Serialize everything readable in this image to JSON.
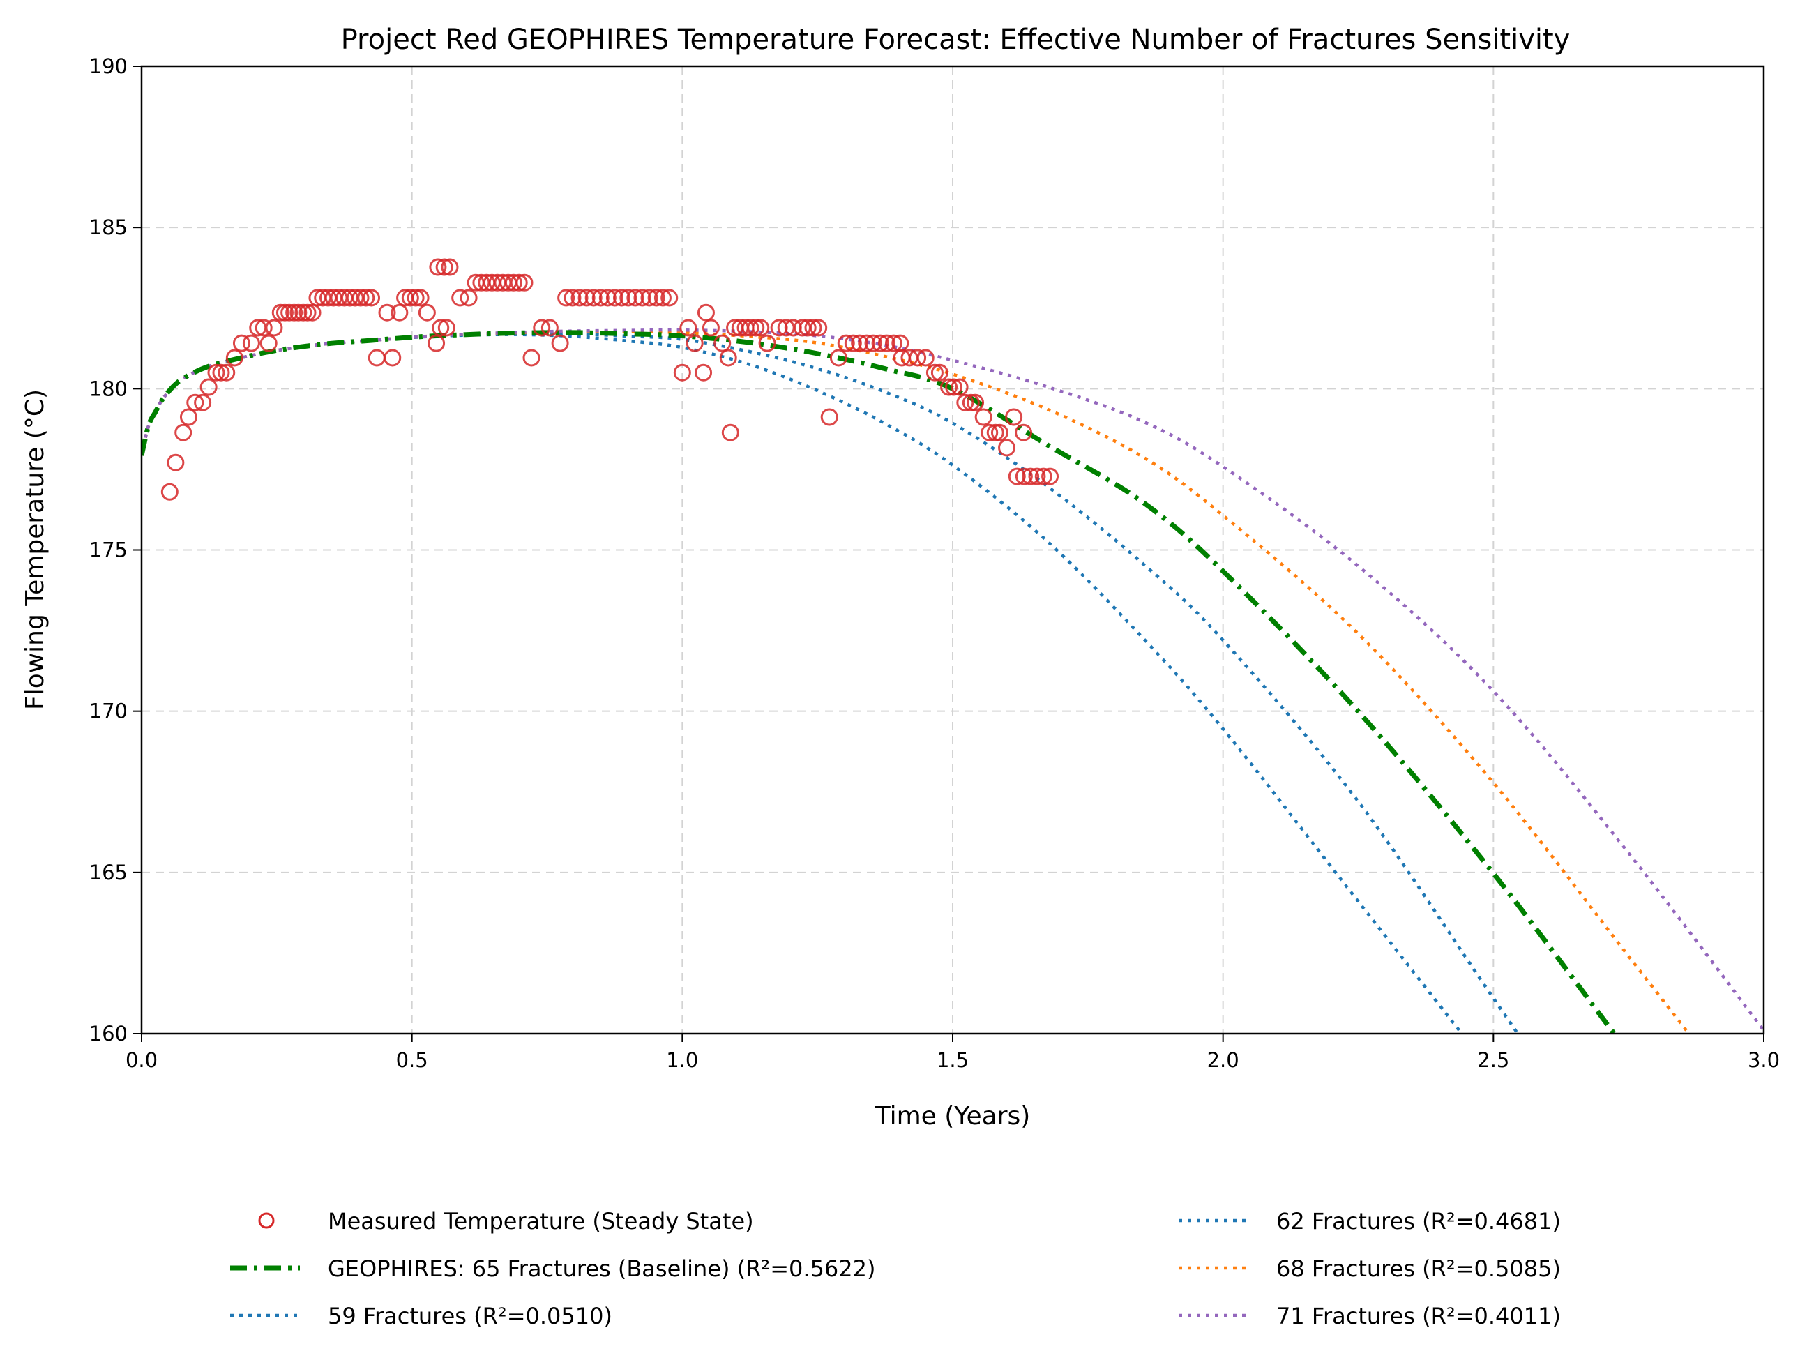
{
  "chart_data": {
    "type": "line",
    "title": "Project Red GEOPHIRES Temperature Forecast: Effective Number of Fractures Sensitivity",
    "xlabel": "Time (Years)",
    "ylabel": "Flowing Temperature (°C)",
    "xlim": [
      0.0,
      3.0
    ],
    "ylim": [
      160,
      190
    ],
    "xticks": [
      0.0,
      0.5,
      1.0,
      1.5,
      2.0,
      2.5,
      3.0
    ],
    "xtick_labels": [
      "0.0",
      "0.5",
      "1.0",
      "1.5",
      "2.0",
      "2.5",
      "3.0"
    ],
    "yticks": [
      160,
      165,
      170,
      175,
      180,
      185,
      190
    ],
    "ytick_labels": [
      "160",
      "165",
      "170",
      "175",
      "180",
      "185",
      "190"
    ],
    "grid": true,
    "legend_placement": "bottom-center, below plot, 2 columns",
    "scatter": {
      "name": "Measured Temperature (Steady State)",
      "color": "#d62728",
      "marker": "open-circle",
      "points": [
        [
          0.052,
          176.8
        ],
        [
          0.063,
          177.71
        ],
        [
          0.077,
          178.64
        ],
        [
          0.087,
          179.12
        ],
        [
          0.099,
          179.57
        ],
        [
          0.113,
          179.57
        ],
        [
          0.124,
          180.05
        ],
        [
          0.138,
          180.5
        ],
        [
          0.147,
          180.5
        ],
        [
          0.157,
          180.5
        ],
        [
          0.172,
          180.96
        ],
        [
          0.185,
          181.41
        ],
        [
          0.203,
          181.41
        ],
        [
          0.235,
          181.41
        ],
        [
          0.215,
          181.89
        ],
        [
          0.226,
          181.89
        ],
        [
          0.245,
          181.89
        ],
        [
          0.257,
          182.36
        ],
        [
          0.265,
          182.36
        ],
        [
          0.273,
          182.36
        ],
        [
          0.282,
          182.36
        ],
        [
          0.29,
          182.36
        ],
        [
          0.299,
          182.36
        ],
        [
          0.307,
          182.36
        ],
        [
          0.316,
          182.36
        ],
        [
          0.325,
          182.82
        ],
        [
          0.335,
          182.82
        ],
        [
          0.345,
          182.82
        ],
        [
          0.355,
          182.82
        ],
        [
          0.365,
          182.82
        ],
        [
          0.375,
          182.82
        ],
        [
          0.385,
          182.82
        ],
        [
          0.395,
          182.82
        ],
        [
          0.405,
          182.82
        ],
        [
          0.415,
          182.82
        ],
        [
          0.425,
          182.82
        ],
        [
          0.435,
          180.96
        ],
        [
          0.464,
          180.96
        ],
        [
          0.454,
          182.36
        ],
        [
          0.477,
          182.36
        ],
        [
          0.487,
          182.82
        ],
        [
          0.497,
          182.82
        ],
        [
          0.507,
          182.82
        ],
        [
          0.516,
          182.82
        ],
        [
          0.528,
          182.36
        ],
        [
          0.545,
          181.41
        ],
        [
          0.553,
          181.89
        ],
        [
          0.564,
          181.89
        ],
        [
          0.548,
          183.77
        ],
        [
          0.56,
          183.77
        ],
        [
          0.57,
          183.77
        ],
        [
          0.589,
          182.82
        ],
        [
          0.605,
          182.82
        ],
        [
          0.618,
          183.29
        ],
        [
          0.628,
          183.29
        ],
        [
          0.638,
          183.29
        ],
        [
          0.648,
          183.29
        ],
        [
          0.658,
          183.29
        ],
        [
          0.668,
          183.29
        ],
        [
          0.678,
          183.29
        ],
        [
          0.688,
          183.29
        ],
        [
          0.698,
          183.29
        ],
        [
          0.708,
          183.29
        ],
        [
          0.721,
          180.96
        ],
        [
          0.74,
          181.89
        ],
        [
          0.755,
          181.89
        ],
        [
          0.774,
          181.41
        ],
        [
          0.785,
          182.82
        ],
        [
          0.797,
          182.82
        ],
        [
          0.81,
          182.82
        ],
        [
          0.823,
          182.82
        ],
        [
          0.836,
          182.82
        ],
        [
          0.849,
          182.82
        ],
        [
          0.862,
          182.82
        ],
        [
          0.875,
          182.82
        ],
        [
          0.888,
          182.82
        ],
        [
          0.9,
          182.82
        ],
        [
          0.913,
          182.82
        ],
        [
          0.926,
          182.82
        ],
        [
          0.939,
          182.82
        ],
        [
          0.952,
          182.82
        ],
        [
          0.964,
          182.82
        ],
        [
          0.976,
          182.82
        ],
        [
          1.0,
          180.5
        ],
        [
          1.011,
          181.89
        ],
        [
          1.023,
          181.41
        ],
        [
          1.039,
          180.5
        ],
        [
          1.044,
          182.36
        ],
        [
          1.053,
          181.89
        ],
        [
          1.074,
          181.41
        ],
        [
          1.085,
          180.96
        ],
        [
          1.089,
          178.64
        ],
        [
          1.097,
          181.89
        ],
        [
          1.107,
          181.89
        ],
        [
          1.117,
          181.89
        ],
        [
          1.126,
          181.89
        ],
        [
          1.136,
          181.89
        ],
        [
          1.145,
          181.89
        ],
        [
          1.157,
          181.41
        ],
        [
          1.179,
          181.89
        ],
        [
          1.192,
          181.89
        ],
        [
          1.205,
          181.89
        ],
        [
          1.222,
          181.89
        ],
        [
          1.232,
          181.89
        ],
        [
          1.242,
          181.89
        ],
        [
          1.252,
          181.89
        ],
        [
          1.272,
          179.12
        ],
        [
          1.289,
          180.96
        ],
        [
          1.303,
          181.41
        ],
        [
          1.316,
          181.41
        ],
        [
          1.328,
          181.41
        ],
        [
          1.341,
          181.41
        ],
        [
          1.353,
          181.41
        ],
        [
          1.366,
          181.41
        ],
        [
          1.378,
          181.41
        ],
        [
          1.391,
          181.41
        ],
        [
          1.403,
          181.41
        ],
        [
          1.406,
          180.96
        ],
        [
          1.42,
          180.96
        ],
        [
          1.435,
          180.96
        ],
        [
          1.45,
          180.96
        ],
        [
          1.467,
          180.5
        ],
        [
          1.476,
          180.5
        ],
        [
          1.493,
          180.05
        ],
        [
          1.502,
          180.05
        ],
        [
          1.513,
          180.05
        ],
        [
          1.523,
          179.57
        ],
        [
          1.534,
          179.57
        ],
        [
          1.542,
          179.57
        ],
        [
          1.557,
          179.12
        ],
        [
          1.568,
          178.64
        ],
        [
          1.579,
          178.64
        ],
        [
          1.587,
          178.64
        ],
        [
          1.6,
          178.17
        ],
        [
          1.613,
          179.12
        ],
        [
          1.631,
          178.64
        ],
        [
          1.619,
          177.28
        ],
        [
          1.632,
          177.28
        ],
        [
          1.644,
          177.28
        ],
        [
          1.656,
          177.28
        ],
        [
          1.668,
          177.28
        ],
        [
          1.68,
          177.28
        ]
      ]
    },
    "x": [
      0.0,
      0.013,
      0.026,
      0.039,
      0.061,
      0.082,
      0.125,
      0.19,
      0.254,
      0.34,
      0.426,
      0.512,
      0.6,
      0.7,
      0.8,
      0.9,
      1.0,
      1.125,
      1.25,
      1.375,
      1.5,
      1.673,
      1.85,
      2.0,
      2.25,
      2.5,
      2.75,
      3.0
    ],
    "series": [
      {
        "name": "GEOPHIRES: 65 Fractures (Baseline) (R²=0.5622)",
        "color": "#008000",
        "style": "dashdot",
        "values": [
          177.93,
          178.86,
          179.29,
          179.68,
          180.11,
          180.37,
          180.7,
          180.98,
          181.2,
          181.39,
          181.5,
          181.61,
          181.68,
          181.73,
          181.74,
          181.7,
          181.64,
          181.43,
          181.09,
          180.62,
          180.0,
          178.28,
          176.5,
          174.34,
          169.99,
          164.97,
          159.4,
          null
        ]
      },
      {
        "name": "59 Fractures (R²=0.0510)",
        "color": "#1f77b4",
        "style": "dotted",
        "values": [
          177.93,
          178.86,
          179.29,
          179.68,
          180.11,
          180.37,
          180.7,
          180.98,
          181.2,
          181.39,
          181.5,
          181.6,
          181.66,
          181.68,
          181.62,
          181.48,
          181.28,
          180.75,
          179.94,
          178.92,
          177.63,
          175.3,
          172.3,
          169.45,
          164.1,
          null,
          null,
          null
        ]
      },
      {
        "name": "62 Fractures (R²=0.4681)",
        "color": "#1f77b4",
        "style": "dotted",
        "values": [
          177.93,
          178.86,
          179.29,
          179.68,
          180.11,
          180.37,
          180.7,
          180.98,
          181.2,
          181.39,
          181.5,
          181.61,
          181.68,
          181.71,
          181.7,
          181.63,
          181.53,
          181.15,
          180.62,
          179.9,
          178.93,
          177.0,
          174.6,
          172.2,
          167.2,
          161.1,
          null,
          null
        ]
      },
      {
        "name": "68 Fractures (R²=0.5085)",
        "color": "#ff7f0e",
        "style": "dotted",
        "values": [
          177.93,
          178.86,
          179.29,
          179.68,
          180.11,
          180.37,
          180.7,
          180.98,
          181.2,
          181.39,
          181.5,
          181.61,
          181.69,
          181.74,
          181.77,
          181.77,
          181.74,
          181.62,
          181.42,
          181.0,
          180.45,
          179.38,
          177.9,
          176.07,
          172.4,
          167.78,
          162.4,
          null
        ]
      },
      {
        "name": "71 Fractures (R²=0.4011)",
        "color": "#9467bd",
        "style": "dotted",
        "values": [
          177.93,
          178.86,
          179.29,
          179.68,
          180.11,
          180.37,
          180.7,
          180.98,
          181.2,
          181.39,
          181.5,
          181.61,
          181.69,
          181.75,
          181.79,
          181.81,
          181.82,
          181.77,
          181.64,
          181.35,
          180.88,
          180.07,
          179.0,
          177.58,
          174.5,
          170.62,
          165.6,
          160.1
        ]
      }
    ],
    "legend": {
      "left_column": [
        {
          "label": "Measured Temperature (Steady State)",
          "marker": "open-circle",
          "color": "#d62728"
        },
        {
          "label": "GEOPHIRES: 65 Fractures (Baseline) (R²=0.5622)",
          "marker": "dashdot",
          "color": "#008000"
        },
        {
          "label": "59 Fractures (R²=0.0510)",
          "marker": "dotted",
          "color": "#1f77b4"
        }
      ],
      "right_column": [
        {
          "label": "62 Fractures (R²=0.4681)",
          "marker": "dotted",
          "color": "#1f77b4"
        },
        {
          "label": "68 Fractures (R²=0.5085)",
          "marker": "dotted",
          "color": "#ff7f0e"
        },
        {
          "label": "71 Fractures (R²=0.4011)",
          "marker": "dotted",
          "color": "#9467bd"
        }
      ]
    }
  }
}
